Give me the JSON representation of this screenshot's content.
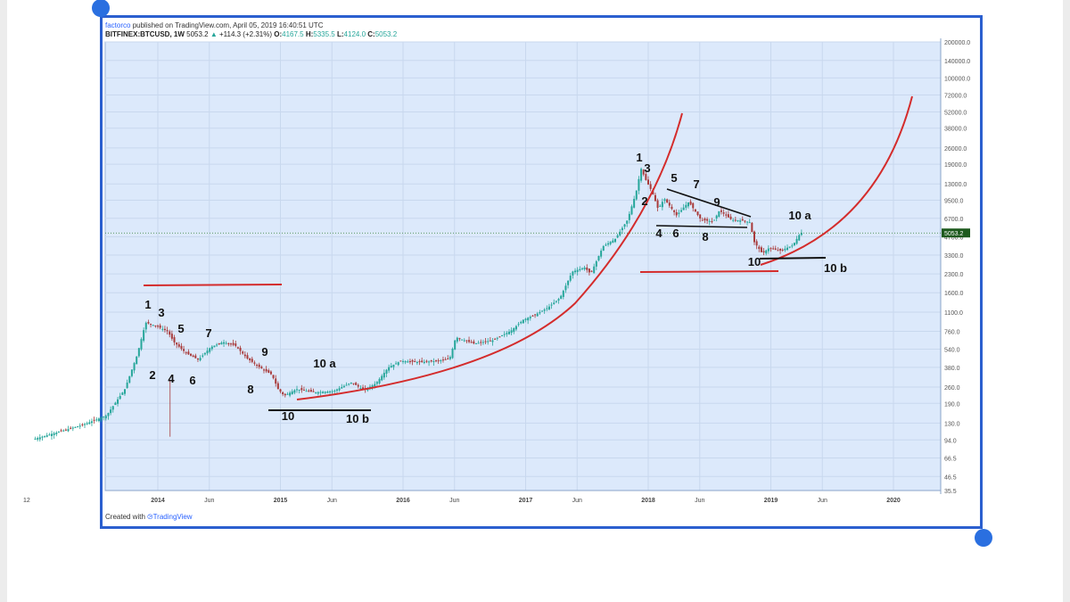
{
  "header": {
    "user": "factorco",
    "published": "published on TradingView.com, April 05, 2019 16:40:51 UTC",
    "symbol": "BITFINEX:BTCUSD, 1W",
    "last": "5053.2",
    "change_icon": "up-triangle-icon",
    "change": "+114.3 (+2.31%)",
    "ohlc": [
      {
        "label": "O:",
        "value": "4167.5"
      },
      {
        "label": "H:",
        "value": "5335.5"
      },
      {
        "label": "L:",
        "value": "4124.0"
      },
      {
        "label": "C:",
        "value": "5053.2"
      }
    ]
  },
  "footer": {
    "created_with": "Created with",
    "logo_text": "TradingView",
    "logo_icon": "tradingview-logo-icon"
  },
  "colors": {
    "plot_bg": "#dce9fb",
    "grid": "#c8d8ee",
    "up": "#26a69a",
    "down": "#a83a3a",
    "annotation_red": "#d42c2c",
    "frame": "#2b5fcf",
    "price_badge": "#1e5a1e"
  },
  "chart_data": {
    "type": "candlestick",
    "y_scale": "log",
    "y_tick_labels": [
      "200000.0",
      "140000.0",
      "100000.0",
      "72000.0",
      "52000.0",
      "38000.0",
      "26000.0",
      "19000.0",
      "13000.0",
      "9500.0",
      "6700.0",
      "4700.0",
      "3300.0",
      "2300.0",
      "1600.0",
      "1100.0",
      "760.0",
      "540.0",
      "380.0",
      "260.0",
      "190.0",
      "130.0",
      "94.0",
      "66.5",
      "46.5",
      "35.5"
    ],
    "x_tick_labels": [
      "12",
      "2014",
      "Jun",
      "2015",
      "Jun",
      "2016",
      "Jun",
      "2017",
      "Jun",
      "2018",
      "Jun",
      "2019",
      "Jun",
      "2020"
    ],
    "last_price_label": "5053.2",
    "price_path": [
      [
        2013.0,
        95
      ],
      [
        2013.4,
        125
      ],
      [
        2013.6,
        150
      ],
      [
        2013.75,
        250
      ],
      [
        2013.85,
        480
      ],
      [
        2013.92,
        900
      ],
      [
        2014.0,
        850
      ],
      [
        2014.1,
        760
      ],
      [
        2014.15,
        620
      ],
      [
        2014.25,
        500
      ],
      [
        2014.35,
        440
      ],
      [
        2014.45,
        560
      ],
      [
        2014.55,
        620
      ],
      [
        2014.65,
        580
      ],
      [
        2014.75,
        450
      ],
      [
        2014.85,
        380
      ],
      [
        2014.95,
        330
      ],
      [
        2015.0,
        250
      ],
      [
        2015.05,
        220
      ],
      [
        2015.15,
        250
      ],
      [
        2015.3,
        235
      ],
      [
        2015.45,
        240
      ],
      [
        2015.6,
        285
      ],
      [
        2015.7,
        245
      ],
      [
        2015.8,
        280
      ],
      [
        2015.9,
        380
      ],
      [
        2016.0,
        430
      ],
      [
        2016.15,
        420
      ],
      [
        2016.3,
        430
      ],
      [
        2016.4,
        450
      ],
      [
        2016.45,
        680
      ],
      [
        2016.5,
        650
      ],
      [
        2016.6,
        600
      ],
      [
        2016.75,
        640
      ],
      [
        2016.9,
        770
      ],
      [
        2017.0,
        950
      ],
      [
        2017.1,
        1050
      ],
      [
        2017.2,
        1200
      ],
      [
        2017.3,
        1450
      ],
      [
        2017.4,
        2400
      ],
      [
        2017.5,
        2600
      ],
      [
        2017.55,
        2300
      ],
      [
        2017.65,
        3900
      ],
      [
        2017.75,
        4500
      ],
      [
        2017.85,
        6500
      ],
      [
        2017.92,
        11000
      ],
      [
        2017.96,
        17500
      ],
      [
        2018.0,
        14000
      ],
      [
        2018.05,
        11200
      ],
      [
        2018.1,
        8000
      ],
      [
        2018.15,
        9800
      ],
      [
        2018.25,
        7100
      ],
      [
        2018.35,
        9200
      ],
      [
        2018.45,
        6500
      ],
      [
        2018.55,
        6300
      ],
      [
        2018.6,
        7800
      ],
      [
        2018.7,
        6500
      ],
      [
        2018.8,
        6400
      ],
      [
        2018.85,
        6200
      ],
      [
        2018.88,
        4300
      ],
      [
        2018.95,
        3400
      ],
      [
        2019.0,
        3750
      ],
      [
        2019.1,
        3600
      ],
      [
        2019.2,
        4000
      ],
      [
        2019.26,
        5053
      ]
    ],
    "annotations": {
      "wave_labels_2014": [
        "1",
        "2",
        "3",
        "4",
        "5",
        "6",
        "7",
        "8",
        "9",
        "10",
        "10 a",
        "10 b"
      ],
      "wave_labels_2018": [
        "1",
        "2",
        "3",
        "4",
        "5",
        "6",
        "7",
        "8",
        "9",
        "10",
        "10 a",
        "10 b"
      ]
    }
  }
}
